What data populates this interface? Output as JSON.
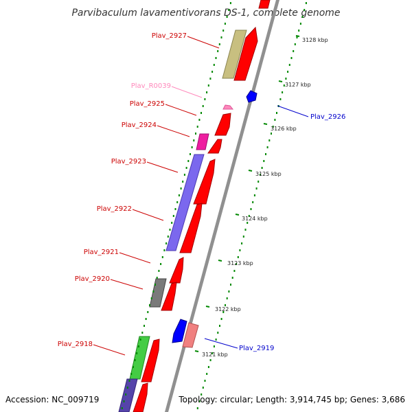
{
  "title": "Parvibaculum lavamentivorans DS-1, complete genome",
  "footer": {
    "accession": "Accession: NC_009719",
    "topology": "Topology: circular; Length: 3,914,745 bp; Genes: 3,686"
  },
  "colors": {
    "background": "#ffffff",
    "backbone": "#909090",
    "forward_gene": "#ff0000",
    "reverse_gene": "#0000ff",
    "label_forward": "#cc0000",
    "label_reverse": "#0000cc",
    "label_rna": "#ff88bb",
    "tick": "#008800"
  },
  "ticks": [
    {
      "label": "3128 kbp"
    },
    {
      "label": "3127 kbp"
    },
    {
      "label": "3126 kbp"
    },
    {
      "label": "3125 kbp"
    },
    {
      "label": "3124 kbp"
    },
    {
      "label": "3123 kbp"
    },
    {
      "label": "3122 kbp"
    },
    {
      "label": "3121 kbp"
    }
  ],
  "labels": [
    {
      "text": "Plav_2927",
      "kind": "forward"
    },
    {
      "text": "Plav_R0039",
      "kind": "rna"
    },
    {
      "text": "Plav_2925",
      "kind": "forward"
    },
    {
      "text": "Plav_2924",
      "kind": "forward"
    },
    {
      "text": "Plav_2923",
      "kind": "forward"
    },
    {
      "text": "Plav_2922",
      "kind": "forward"
    },
    {
      "text": "Plav_2921",
      "kind": "forward"
    },
    {
      "text": "Plav_2920",
      "kind": "forward"
    },
    {
      "text": "Plav_2918",
      "kind": "forward"
    },
    {
      "text": "Plav_2926",
      "kind": "reverse"
    },
    {
      "text": "Plav_2919",
      "kind": "reverse"
    }
  ]
}
